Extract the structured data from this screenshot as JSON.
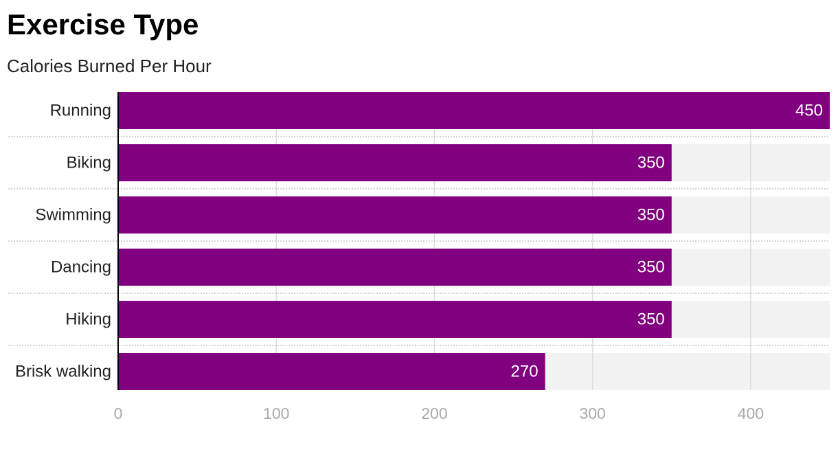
{
  "chart_data": {
    "type": "bar",
    "orientation": "horizontal",
    "title": "Exercise Type",
    "subtitle": "Calories Burned Per Hour",
    "categories": [
      "Running",
      "Biking",
      "Swimming",
      "Dancing",
      "Hiking",
      "Brisk walking"
    ],
    "values": [
      450,
      350,
      350,
      350,
      350,
      270
    ],
    "data_labels": [
      "450",
      "350",
      "350",
      "350",
      "350",
      "270"
    ],
    "xlim": [
      0,
      450
    ],
    "x_ticks": [
      0,
      100,
      200,
      300,
      400
    ],
    "x_tick_labels": [
      "0",
      "100",
      "200",
      "300",
      "400"
    ],
    "grid": true,
    "legend": "none",
    "colors": {
      "bar": "#800080",
      "track": "#f2f2f2",
      "gridline": "#dddddd",
      "tick_label": "#aaaaaa",
      "data_label": "#ffffff",
      "category_label": "#222222"
    }
  }
}
